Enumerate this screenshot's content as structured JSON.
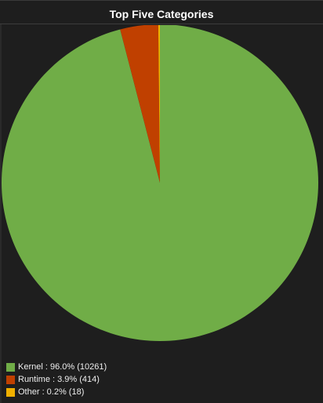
{
  "chart_data": {
    "type": "pie",
    "title": "Top Five Categories",
    "slices": [
      {
        "name": "Kernel",
        "percent_label": "96.0%",
        "count": 10261,
        "color": "#70ad47",
        "label": "Kernel : 96.0% (10261)"
      },
      {
        "name": "Runtime",
        "percent_label": "3.9%",
        "count": 414,
        "color": "#c04000",
        "label": "Runtime : 3.9% (414)"
      },
      {
        "name": "Other",
        "percent_label": "0.2%",
        "count": 18,
        "color": "#f0b000",
        "label": "Other : 0.2% (18)"
      }
    ],
    "legend_position": "bottom-left"
  }
}
